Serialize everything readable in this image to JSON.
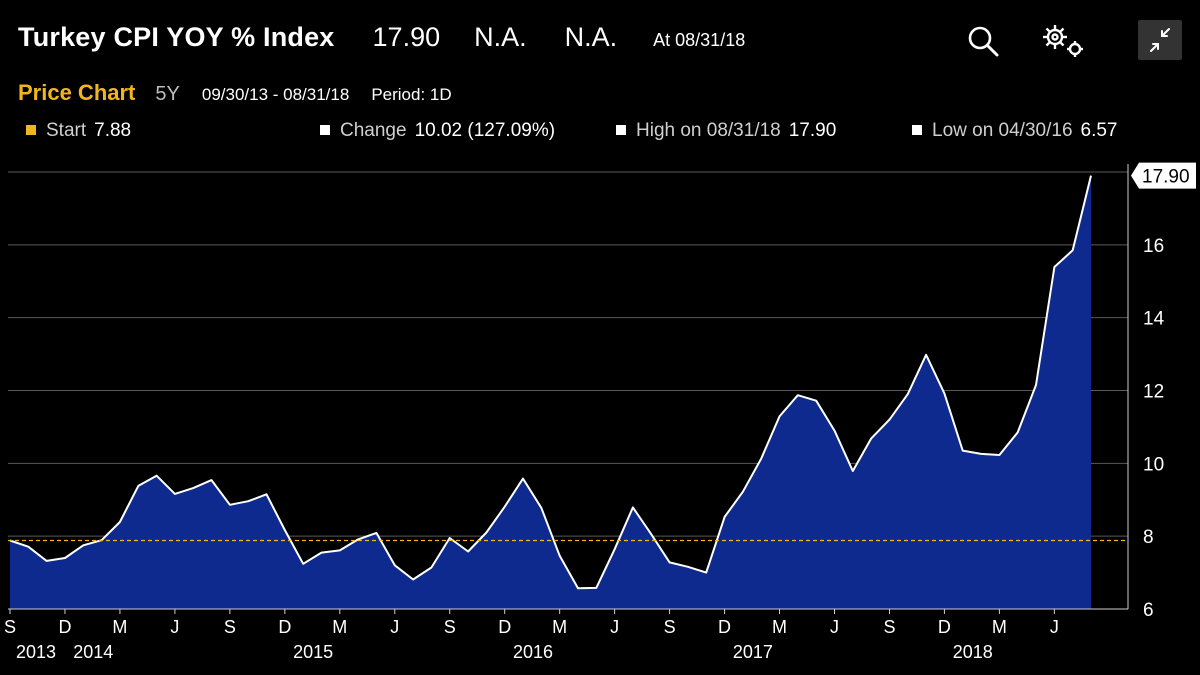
{
  "header": {
    "ticker": "Turkey CPI YOY % Index",
    "price": "17.90",
    "na1": "N.A.",
    "na2": "N.A.",
    "as_of": "At 08/31/18"
  },
  "subheader": {
    "title": "Price Chart",
    "span": "5Y",
    "range": "09/30/13 - 08/31/18",
    "period": "Period: 1D"
  },
  "stats": {
    "start_label": "Start",
    "start_value": "7.88",
    "change_label": "Change",
    "change_value": "10.02 (127.09%)",
    "high_label": "High on 08/31/18",
    "high_value": "17.90",
    "low_label": "Low on 04/30/16",
    "low_value": "6.57"
  },
  "colors": {
    "accent": "#f2b61d",
    "area_fill": "#0f2a8f",
    "line": "#ffffff",
    "grid": "#5a5a5a"
  },
  "icons": [
    "search-icon",
    "gear-icon",
    "collapse-icon"
  ],
  "chart_data": {
    "type": "area",
    "ylim": [
      6,
      18
    ],
    "yticks": [
      6,
      8,
      10,
      12,
      14,
      16
    ],
    "last_value_label": "17.90",
    "reference_line": 7.88,
    "x_month_labels": [
      "S",
      "D",
      "M",
      "J",
      "S",
      "D",
      "M",
      "J",
      "S",
      "D",
      "M",
      "J",
      "S",
      "D",
      "M",
      "J",
      "S",
      "D",
      "M",
      "J"
    ],
    "x_year_labels": [
      "2013",
      "2014",
      "2015",
      "2016",
      "2017",
      "2018"
    ],
    "x": [
      "2013-09",
      "2013-10",
      "2013-11",
      "2013-12",
      "2014-01",
      "2014-02",
      "2014-03",
      "2014-04",
      "2014-05",
      "2014-06",
      "2014-07",
      "2014-08",
      "2014-09",
      "2014-10",
      "2014-11",
      "2014-12",
      "2015-01",
      "2015-02",
      "2015-03",
      "2015-04",
      "2015-05",
      "2015-06",
      "2015-07",
      "2015-08",
      "2015-09",
      "2015-10",
      "2015-11",
      "2015-12",
      "2016-01",
      "2016-02",
      "2016-03",
      "2016-04",
      "2016-05",
      "2016-06",
      "2016-07",
      "2016-08",
      "2016-09",
      "2016-10",
      "2016-11",
      "2016-12",
      "2017-01",
      "2017-02",
      "2017-03",
      "2017-04",
      "2017-05",
      "2017-06",
      "2017-07",
      "2017-08",
      "2017-09",
      "2017-10",
      "2017-11",
      "2017-12",
      "2018-01",
      "2018-02",
      "2018-03",
      "2018-04",
      "2018-05",
      "2018-06",
      "2018-07",
      "2018-08"
    ],
    "values": [
      7.88,
      7.71,
      7.32,
      7.4,
      7.75,
      7.89,
      8.39,
      9.38,
      9.66,
      9.16,
      9.32,
      9.54,
      8.86,
      8.96,
      9.15,
      8.17,
      7.24,
      7.55,
      7.61,
      7.91,
      8.09,
      7.2,
      6.81,
      7.14,
      7.95,
      7.58,
      8.1,
      8.81,
      9.58,
      8.78,
      7.46,
      6.57,
      6.58,
      7.64,
      8.79,
      8.05,
      7.28,
      7.16,
      7.0,
      8.53,
      9.22,
      10.13,
      11.29,
      11.87,
      11.72,
      10.9,
      9.79,
      10.68,
      11.2,
      11.9,
      12.98,
      11.92,
      10.35,
      10.26,
      10.23,
      10.85,
      12.15,
      15.39,
      15.85,
      17.9
    ]
  }
}
